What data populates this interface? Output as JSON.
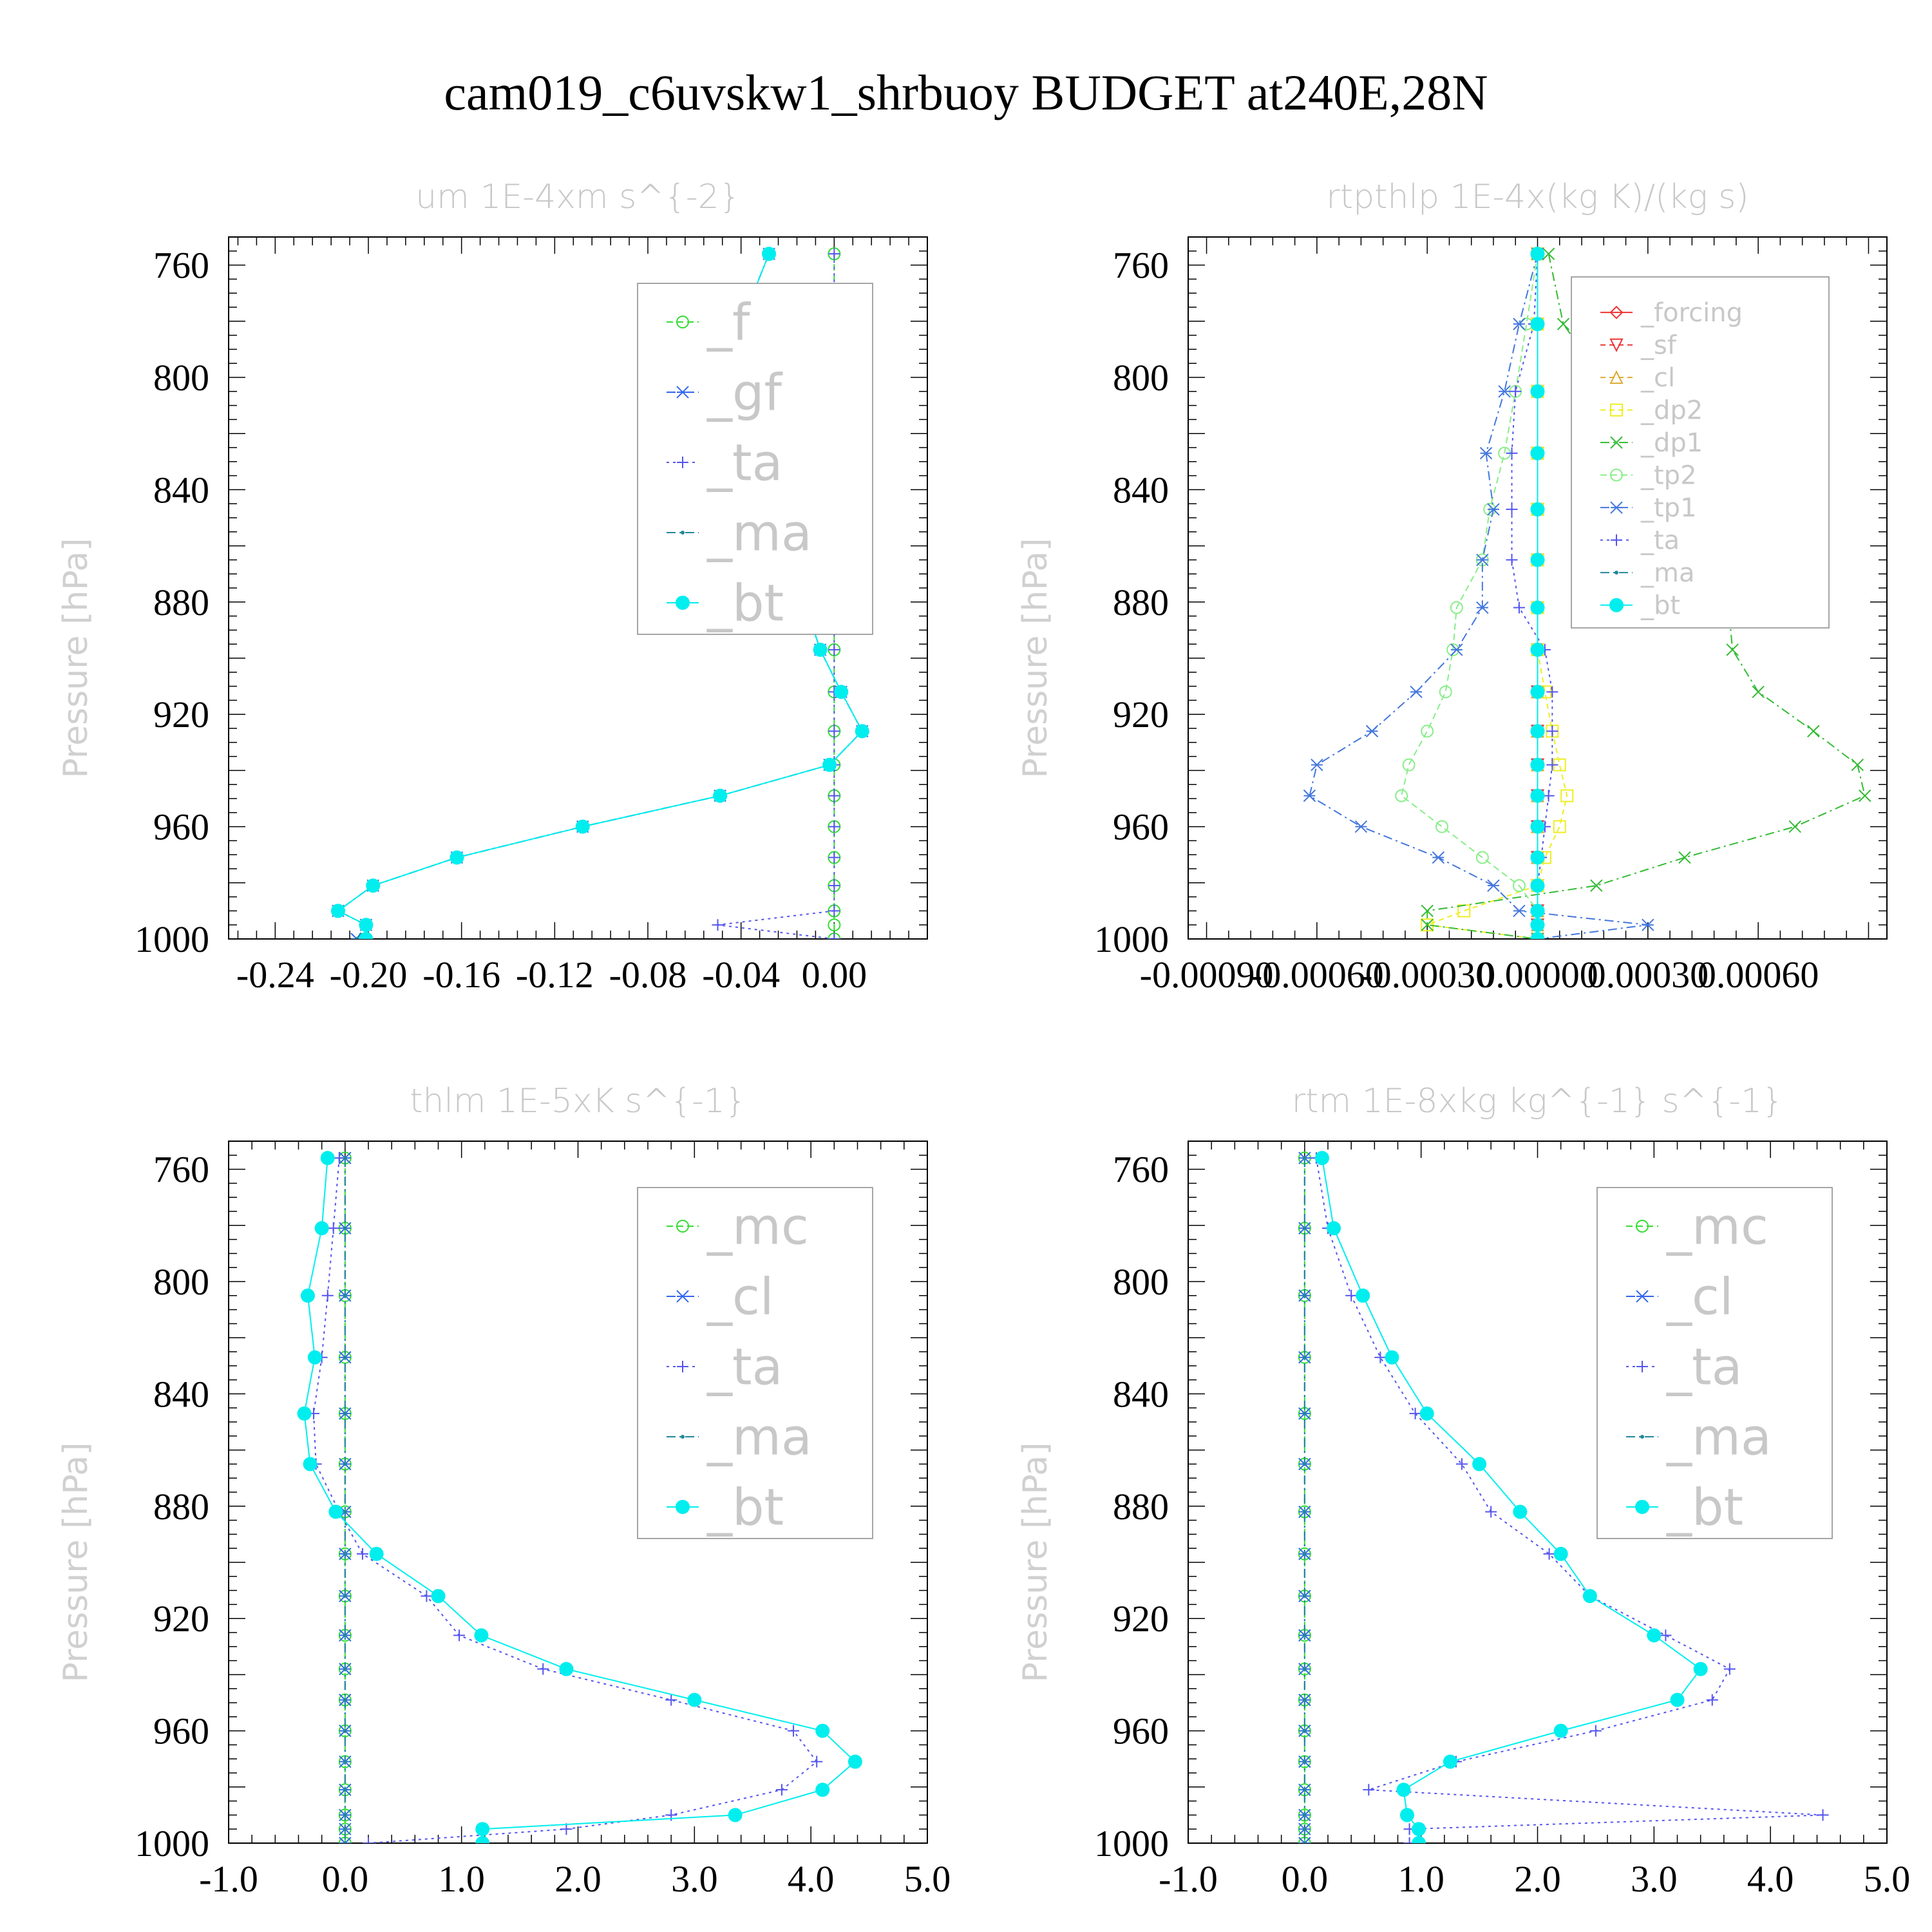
{
  "main_title": "cam019_c6uvskw1_shrbuoy  BUDGET at240E,28N",
  "chart_data": [
    {
      "type": "line",
      "title": "um   1E-4xm s^{-2}",
      "ylabel": "Pressure [hPa]",
      "ylim": [
        1000,
        750
      ],
      "yticks": [
        760,
        800,
        840,
        880,
        920,
        960,
        1000
      ],
      "xlim": [
        -0.26,
        0.04
      ],
      "xticks": [
        -0.24,
        -0.2,
        -0.16,
        -0.12,
        -0.08,
        -0.04,
        0.0
      ],
      "xtick_labels": [
        "-0.24",
        "-0.20",
        "-0.16",
        "-0.12",
        "-0.08",
        "-0.04",
        "0.00"
      ],
      "legend_position": "top-right",
      "legend_font": 78,
      "levels": [
        756,
        781,
        805,
        827,
        847,
        865,
        882,
        897,
        912,
        926,
        938,
        949,
        960,
        971,
        981,
        990,
        995,
        1000
      ],
      "series": [
        {
          "name": "_f",
          "color": "#33dd33",
          "marker": "circle",
          "dash": "10,6",
          "values": [
            0,
            0,
            0,
            0,
            0,
            0,
            0,
            0,
            0,
            0,
            0,
            0,
            0,
            0,
            0,
            0,
            0,
            0
          ]
        },
        {
          "name": "_gf",
          "color": "#3366ee",
          "marker": "star",
          "dash": "14,6,3,6",
          "values": [
            -0.028,
            -0.04,
            -0.049,
            -0.045,
            -0.035,
            -0.023,
            -0.012,
            -0.006,
            0.003,
            0.012,
            -0.002,
            -0.049,
            -0.108,
            -0.162,
            -0.198,
            -0.213,
            -0.201,
            -0.205
          ]
        },
        {
          "name": "_ta",
          "color": "#5555ee",
          "marker": "plus",
          "dash": "4,6",
          "values": [
            0,
            0,
            0,
            0,
            0,
            0,
            0,
            0,
            0,
            0,
            0,
            0,
            0,
            0,
            0,
            0,
            -0.05,
            0
          ]
        },
        {
          "name": "_ma",
          "color": "#228899",
          "marker": "dot",
          "dash": "14,6,3,6",
          "values": [
            -0.028,
            -0.04,
            -0.049,
            -0.045,
            -0.035,
            -0.023,
            -0.012,
            -0.006,
            0.003,
            0.012,
            -0.002,
            -0.049,
            -0.108,
            -0.162,
            -0.198,
            -0.213,
            -0.201,
            -0.205
          ]
        },
        {
          "name": "_bt",
          "color": "#00eeee",
          "marker": "bigdot",
          "dash": "none",
          "values": [
            -0.028,
            -0.04,
            -0.049,
            -0.045,
            -0.035,
            -0.023,
            -0.012,
            -0.006,
            0.003,
            0.012,
            -0.002,
            -0.049,
            -0.108,
            -0.162,
            -0.198,
            -0.213,
            -0.201,
            -0.201
          ]
        }
      ]
    },
    {
      "type": "line",
      "title": "rtpthlp   1E-4x(kg K)/(kg s)",
      "ylabel": "Pressure [hPa]",
      "ylim": [
        1000,
        750
      ],
      "yticks": [
        760,
        800,
        840,
        880,
        920,
        960,
        1000
      ],
      "xlim": [
        -0.00095,
        0.00095
      ],
      "xticks": [
        -0.0009,
        -0.0006,
        -0.0003,
        0.0,
        0.0003,
        0.0006
      ],
      "xtick_labels": [
        "-0.00090",
        "-0.00060",
        "-0.00030",
        "0.00000",
        "0.00030",
        "0.00060"
      ],
      "legend_position": "top-right",
      "legend_font": 40,
      "levels": [
        756,
        781,
        805,
        827,
        847,
        865,
        882,
        897,
        912,
        926,
        938,
        949,
        960,
        971,
        981,
        990,
        995,
        1000
      ],
      "series": [
        {
          "name": "_forcing",
          "color": "#ee3333",
          "marker": "diamond",
          "dash": "none",
          "values": [
            0,
            0,
            0,
            0,
            0,
            0,
            0,
            0,
            0,
            0,
            0,
            0,
            0,
            0,
            0,
            0,
            0,
            0
          ]
        },
        {
          "name": "_sf",
          "color": "#ee3333",
          "marker": "tri-down",
          "dash": "8,6",
          "values": [
            0,
            0,
            0,
            0,
            0,
            0,
            0,
            0,
            0,
            0,
            0,
            0,
            0,
            0,
            0,
            0,
            0,
            0
          ]
        },
        {
          "name": "_cl",
          "color": "#ddaa33",
          "marker": "tri-up",
          "dash": "8,6",
          "values": [
            0,
            0,
            0,
            0,
            0,
            0,
            0,
            0,
            0,
            0,
            0,
            0,
            0,
            0,
            0,
            0,
            0,
            0
          ]
        },
        {
          "name": "_dp2",
          "color": "#eeee22",
          "marker": "square",
          "dash": "8,6",
          "values": [
            0,
            0,
            0,
            0,
            0,
            0,
            0,
            0,
            2e-05,
            4e-05,
            6e-05,
            8e-05,
            6e-05,
            2e-05,
            0,
            -0.0002,
            -0.0003,
            0
          ]
        },
        {
          "name": "_dp1",
          "color": "#33bb33",
          "marker": "x",
          "dash": "14,6,3,6",
          "values": [
            3e-05,
            7e-05,
            0.0002,
            0.0003,
            0.00035,
            0.00042,
            0.00052,
            0.00053,
            0.0006,
            0.00075,
            0.00087,
            0.00089,
            0.0007,
            0.0004,
            0.00016,
            -0.0003,
            -0.0003,
            0
          ]
        },
        {
          "name": "_tp2",
          "color": "#88ee88",
          "marker": "circle",
          "dash": "10,6",
          "values": [
            0,
            -3e-05,
            -6e-05,
            -9e-05,
            -0.00013,
            -0.00015,
            -0.00022,
            -0.00023,
            -0.00025,
            -0.0003,
            -0.00035,
            -0.00037,
            -0.00026,
            -0.00015,
            -5e-05,
            0,
            0,
            0
          ]
        },
        {
          "name": "_tp1",
          "color": "#4477dd",
          "marker": "star",
          "dash": "14,6,3,6",
          "values": [
            0.0,
            -5e-05,
            -9e-05,
            -0.00014,
            -0.00012,
            -0.00015,
            -0.00015,
            -0.00022,
            -0.00033,
            -0.00045,
            -0.0006,
            -0.00062,
            -0.00048,
            -0.00027,
            -0.00012,
            -5e-05,
            0.0003,
            0
          ]
        },
        {
          "name": "_ta",
          "color": "#5555ee",
          "marker": "plus",
          "dash": "4,6",
          "values": [
            0,
            -1e-05,
            -6e-05,
            -7e-05,
            -7e-05,
            -7e-05,
            -5e-05,
            2e-05,
            4e-05,
            4e-05,
            4e-05,
            3e-05,
            2e-05,
            1e-05,
            0,
            0,
            0,
            0
          ]
        },
        {
          "name": "_ma",
          "color": "#228899",
          "marker": "dot",
          "dash": "14,6,3,6",
          "values": [
            0,
            0,
            0,
            0,
            0,
            0,
            0,
            0,
            0,
            0,
            0,
            0,
            0,
            0,
            0,
            0,
            0,
            0
          ]
        },
        {
          "name": "_bt",
          "color": "#00eeee",
          "marker": "bigdot",
          "dash": "none",
          "values": [
            0,
            0,
            0,
            0,
            0,
            0,
            0,
            0,
            0,
            0,
            0,
            0,
            0,
            0,
            0,
            0,
            0,
            0
          ]
        }
      ]
    },
    {
      "type": "line",
      "title": "thlm   1E-5xK s^{-1}",
      "ylabel": "Pressure [hPa]",
      "ylim": [
        1000,
        750
      ],
      "yticks": [
        760,
        800,
        840,
        880,
        920,
        960,
        1000
      ],
      "xlim": [
        -1.0,
        5.0
      ],
      "xticks": [
        -1.0,
        0.0,
        1.0,
        2.0,
        3.0,
        4.0,
        5.0
      ],
      "xtick_labels": [
        "-1.0",
        "0.0",
        "1.0",
        "2.0",
        "3.0",
        "4.0",
        "5.0"
      ],
      "legend_position": "top-right",
      "legend_font": 78,
      "levels": [
        756,
        781,
        805,
        827,
        847,
        865,
        882,
        897,
        912,
        926,
        938,
        949,
        960,
        971,
        981,
        990,
        995,
        1000
      ],
      "series": [
        {
          "name": "_mc",
          "color": "#33dd33",
          "marker": "circle",
          "dash": "10,6",
          "values": [
            0,
            0,
            0,
            0,
            0,
            0,
            0,
            0,
            0,
            0,
            0,
            0,
            0,
            0,
            0,
            0,
            0,
            0
          ]
        },
        {
          "name": "_cl",
          "color": "#3366ee",
          "marker": "star",
          "dash": "14,6,3,6",
          "values": [
            0,
            0,
            0,
            0,
            0,
            0,
            0,
            0,
            0,
            0,
            0,
            0,
            0,
            0,
            0,
            0,
            0,
            0
          ]
        },
        {
          "name": "_ta",
          "color": "#5555ee",
          "marker": "plus",
          "dash": "4,6",
          "values": [
            -0.05,
            -0.1,
            -0.15,
            -0.2,
            -0.27,
            -0.25,
            -0.05,
            0.15,
            0.7,
            0.98,
            1.7,
            2.8,
            3.85,
            4.05,
            3.75,
            2.8,
            1.9,
            0.2
          ]
        },
        {
          "name": "_ma",
          "color": "#228899",
          "marker": "dot",
          "dash": "14,6,3,6",
          "values": [
            0,
            0,
            0,
            0,
            0,
            0,
            0,
            0,
            0,
            0,
            0,
            0,
            0,
            0,
            0,
            0,
            0,
            0
          ]
        },
        {
          "name": "_bt",
          "color": "#00eeee",
          "marker": "bigdot",
          "dash": "none",
          "values": [
            -0.15,
            -0.2,
            -0.32,
            -0.26,
            -0.35,
            -0.3,
            -0.08,
            0.27,
            0.8,
            1.17,
            1.9,
            3.0,
            4.1,
            4.38,
            4.1,
            3.35,
            1.18,
            1.18
          ]
        }
      ]
    },
    {
      "type": "line",
      "title": "rtm   1E-8xkg kg^{-1} s^{-1}",
      "ylabel": "Pressure [hPa]",
      "ylim": [
        1000,
        750
      ],
      "yticks": [
        760,
        800,
        840,
        880,
        920,
        960,
        1000
      ],
      "xlim": [
        -1.0,
        5.0
      ],
      "xticks": [
        -1.0,
        0.0,
        1.0,
        2.0,
        3.0,
        4.0,
        5.0
      ],
      "xtick_labels": [
        "-1.0",
        "0.0",
        "1.0",
        "2.0",
        "3.0",
        "4.0",
        "5.0"
      ],
      "legend_position": "top-right",
      "legend_font": 78,
      "levels": [
        756,
        781,
        805,
        827,
        847,
        865,
        882,
        897,
        912,
        926,
        938,
        949,
        960,
        971,
        981,
        990,
        995,
        1000
      ],
      "series": [
        {
          "name": "_mc",
          "color": "#33dd33",
          "marker": "circle",
          "dash": "10,6",
          "values": [
            0,
            0,
            0,
            0,
            0,
            0,
            0,
            0,
            0,
            0,
            0,
            0,
            0,
            0,
            0,
            0,
            0,
            0
          ]
        },
        {
          "name": "_cl",
          "color": "#3366ee",
          "marker": "star",
          "dash": "14,6,3,6",
          "values": [
            0,
            0,
            0,
            0,
            0,
            0,
            0,
            0,
            0,
            0,
            0,
            0,
            0,
            0,
            0,
            0,
            0,
            0
          ]
        },
        {
          "name": "_ta",
          "color": "#5555ee",
          "marker": "plus",
          "dash": "4,6",
          "values": [
            0.1,
            0.2,
            0.4,
            0.65,
            0.95,
            1.35,
            1.6,
            2.1,
            2.45,
            3.1,
            3.65,
            3.5,
            2.5,
            1.3,
            0.55,
            4.45,
            0.9,
            0.9
          ]
        },
        {
          "name": "_ma",
          "color": "#228899",
          "marker": "dot",
          "dash": "14,6,3,6",
          "values": [
            0,
            0,
            0,
            0,
            0,
            0,
            0,
            0,
            0,
            0,
            0,
            0,
            0,
            0,
            0,
            0,
            0,
            0
          ]
        },
        {
          "name": "_bt",
          "color": "#00eeee",
          "marker": "bigdot",
          "dash": "none",
          "values": [
            0.15,
            0.25,
            0.5,
            0.75,
            1.05,
            1.5,
            1.85,
            2.2,
            2.45,
            3.0,
            3.4,
            3.2,
            2.2,
            1.25,
            0.85,
            0.88,
            0.98,
            0.98
          ]
        }
      ]
    }
  ]
}
